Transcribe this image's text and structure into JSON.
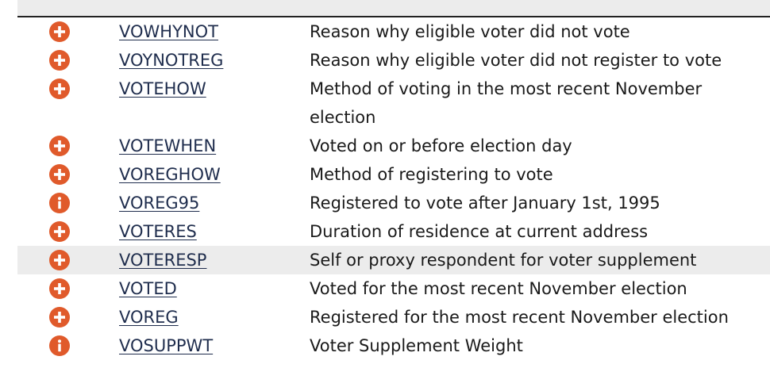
{
  "colors": {
    "icon_accent": "#e05a2b",
    "link_text": "#1f2d4d",
    "row_highlight": "#ececec",
    "body_text": "#1a1a1a"
  },
  "variables": [
    {
      "icon": "plus-circle-icon",
      "name": "VOWHYNOT",
      "description": "Reason why eligible voter did not vote"
    },
    {
      "icon": "plus-circle-icon",
      "name": "VOYNOTREG",
      "description": "Reason why eligible voter did not register to vote"
    },
    {
      "icon": "plus-circle-icon",
      "name": "VOTEHOW",
      "description": "Method of voting in the most recent November election"
    },
    {
      "icon": "plus-circle-icon",
      "name": "VOTEWHEN",
      "description": "Voted on or before election day"
    },
    {
      "icon": "plus-circle-icon",
      "name": "VOREGHOW",
      "description": "Method of registering to vote"
    },
    {
      "icon": "info-circle-icon",
      "name": "VOREG95",
      "description": "Registered to vote after January 1st, 1995"
    },
    {
      "icon": "plus-circle-icon",
      "name": "VOTERES",
      "description": "Duration of residence at current address"
    },
    {
      "icon": "plus-circle-icon",
      "name": "VOTERESP",
      "description": "Self or proxy respondent for voter supplement"
    },
    {
      "icon": "plus-circle-icon",
      "name": "VOTED",
      "description": "Voted for the most recent November election"
    },
    {
      "icon": "plus-circle-icon",
      "name": "VOREG",
      "description": "Registered for the most recent November election"
    },
    {
      "icon": "info-circle-icon",
      "name": "VOSUPPWT",
      "description": "Voter Supplement Weight"
    }
  ]
}
